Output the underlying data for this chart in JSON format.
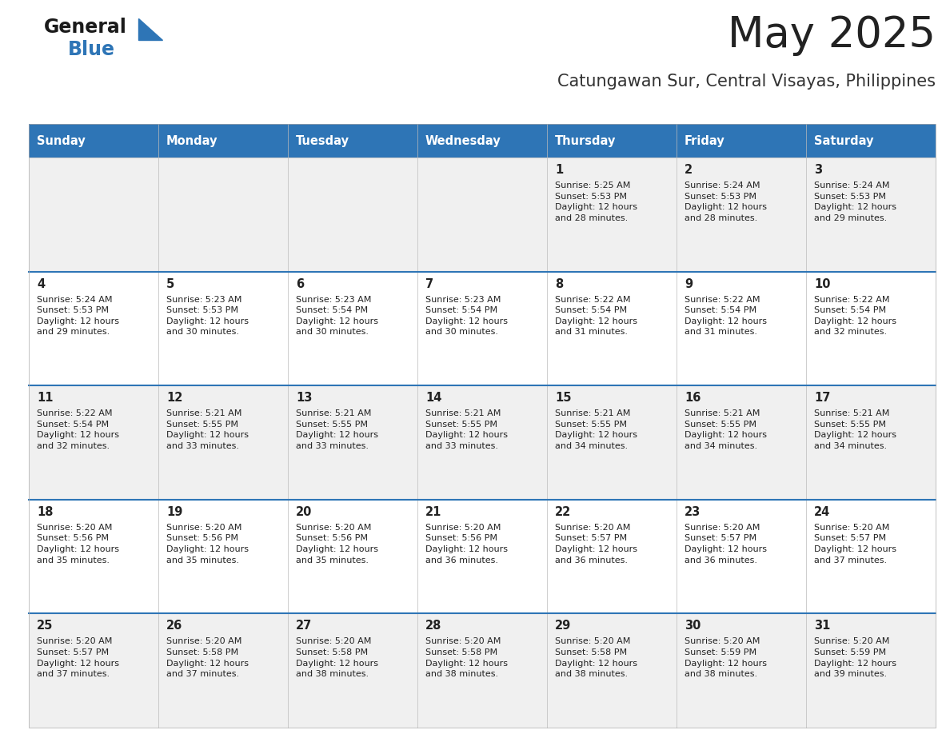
{
  "title": "May 2025",
  "subtitle": "Catungawan Sur, Central Visayas, Philippines",
  "days_of_week": [
    "Sunday",
    "Monday",
    "Tuesday",
    "Wednesday",
    "Thursday",
    "Friday",
    "Saturday"
  ],
  "header_bg": "#2E75B6",
  "header_text": "#FFFFFF",
  "row_bg_odd": "#F0F0F0",
  "row_bg_even": "#FFFFFF",
  "cell_text_color": "#222222",
  "row_separator_color": "#2E75B6",
  "title_color": "#222222",
  "subtitle_color": "#333333",
  "logo_general_color": "#1a1a1a",
  "logo_blue_color": "#2E75B6",
  "calendar_data": [
    [
      "",
      "",
      "",
      "",
      "1\nSunrise: 5:25 AM\nSunset: 5:53 PM\nDaylight: 12 hours\nand 28 minutes.",
      "2\nSunrise: 5:24 AM\nSunset: 5:53 PM\nDaylight: 12 hours\nand 28 minutes.",
      "3\nSunrise: 5:24 AM\nSunset: 5:53 PM\nDaylight: 12 hours\nand 29 minutes."
    ],
    [
      "4\nSunrise: 5:24 AM\nSunset: 5:53 PM\nDaylight: 12 hours\nand 29 minutes.",
      "5\nSunrise: 5:23 AM\nSunset: 5:53 PM\nDaylight: 12 hours\nand 30 minutes.",
      "6\nSunrise: 5:23 AM\nSunset: 5:54 PM\nDaylight: 12 hours\nand 30 minutes.",
      "7\nSunrise: 5:23 AM\nSunset: 5:54 PM\nDaylight: 12 hours\nand 30 minutes.",
      "8\nSunrise: 5:22 AM\nSunset: 5:54 PM\nDaylight: 12 hours\nand 31 minutes.",
      "9\nSunrise: 5:22 AM\nSunset: 5:54 PM\nDaylight: 12 hours\nand 31 minutes.",
      "10\nSunrise: 5:22 AM\nSunset: 5:54 PM\nDaylight: 12 hours\nand 32 minutes."
    ],
    [
      "11\nSunrise: 5:22 AM\nSunset: 5:54 PM\nDaylight: 12 hours\nand 32 minutes.",
      "12\nSunrise: 5:21 AM\nSunset: 5:55 PM\nDaylight: 12 hours\nand 33 minutes.",
      "13\nSunrise: 5:21 AM\nSunset: 5:55 PM\nDaylight: 12 hours\nand 33 minutes.",
      "14\nSunrise: 5:21 AM\nSunset: 5:55 PM\nDaylight: 12 hours\nand 33 minutes.",
      "15\nSunrise: 5:21 AM\nSunset: 5:55 PM\nDaylight: 12 hours\nand 34 minutes.",
      "16\nSunrise: 5:21 AM\nSunset: 5:55 PM\nDaylight: 12 hours\nand 34 minutes.",
      "17\nSunrise: 5:21 AM\nSunset: 5:55 PM\nDaylight: 12 hours\nand 34 minutes."
    ],
    [
      "18\nSunrise: 5:20 AM\nSunset: 5:56 PM\nDaylight: 12 hours\nand 35 minutes.",
      "19\nSunrise: 5:20 AM\nSunset: 5:56 PM\nDaylight: 12 hours\nand 35 minutes.",
      "20\nSunrise: 5:20 AM\nSunset: 5:56 PM\nDaylight: 12 hours\nand 35 minutes.",
      "21\nSunrise: 5:20 AM\nSunset: 5:56 PM\nDaylight: 12 hours\nand 36 minutes.",
      "22\nSunrise: 5:20 AM\nSunset: 5:57 PM\nDaylight: 12 hours\nand 36 minutes.",
      "23\nSunrise: 5:20 AM\nSunset: 5:57 PM\nDaylight: 12 hours\nand 36 minutes.",
      "24\nSunrise: 5:20 AM\nSunset: 5:57 PM\nDaylight: 12 hours\nand 37 minutes."
    ],
    [
      "25\nSunrise: 5:20 AM\nSunset: 5:57 PM\nDaylight: 12 hours\nand 37 minutes.",
      "26\nSunrise: 5:20 AM\nSunset: 5:58 PM\nDaylight: 12 hours\nand 37 minutes.",
      "27\nSunrise: 5:20 AM\nSunset: 5:58 PM\nDaylight: 12 hours\nand 38 minutes.",
      "28\nSunrise: 5:20 AM\nSunset: 5:58 PM\nDaylight: 12 hours\nand 38 minutes.",
      "29\nSunrise: 5:20 AM\nSunset: 5:58 PM\nDaylight: 12 hours\nand 38 minutes.",
      "30\nSunrise: 5:20 AM\nSunset: 5:59 PM\nDaylight: 12 hours\nand 38 minutes.",
      "31\nSunrise: 5:20 AM\nSunset: 5:59 PM\nDaylight: 12 hours\nand 39 minutes."
    ]
  ],
  "fig_width": 11.88,
  "fig_height": 9.18,
  "dpi": 100
}
